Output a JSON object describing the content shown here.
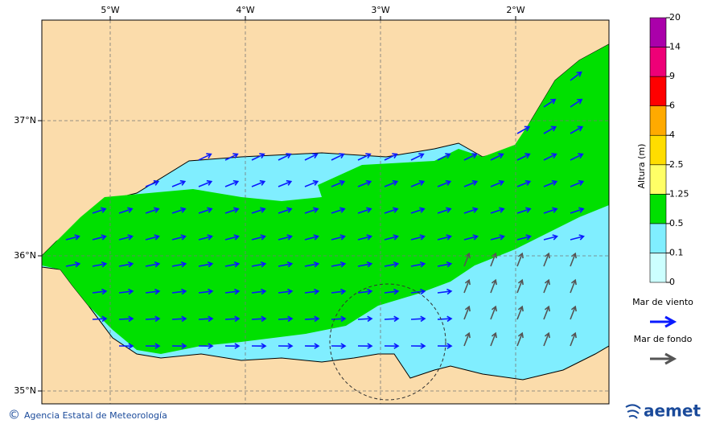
{
  "map": {
    "longitudes": [
      "5°W",
      "4°W",
      "3°W",
      "2°W"
    ],
    "latitudes": [
      "37°N",
      "36°N",
      "35°N"
    ],
    "colorbar": {
      "title": "Altura (m)",
      "levels": [
        0,
        0.1,
        0.5,
        1.25,
        2.5,
        4,
        6,
        9,
        14,
        20
      ],
      "colors": [
        "#ccffff",
        "#80eeff",
        "#00e000",
        "#ffff66",
        "#ffdd00",
        "#ffaa00",
        "#ff0000",
        "#ee0077",
        "#aa00aa"
      ]
    },
    "legend": [
      {
        "label": "Mar de viento",
        "color": "#0a1aff"
      },
      {
        "label": "Mar de fondo",
        "color": "#555555"
      }
    ]
  },
  "footer": {
    "copyright_symbol": "©",
    "copyright": "Agencia Estatal de Meteorología",
    "logo": "aemet"
  }
}
